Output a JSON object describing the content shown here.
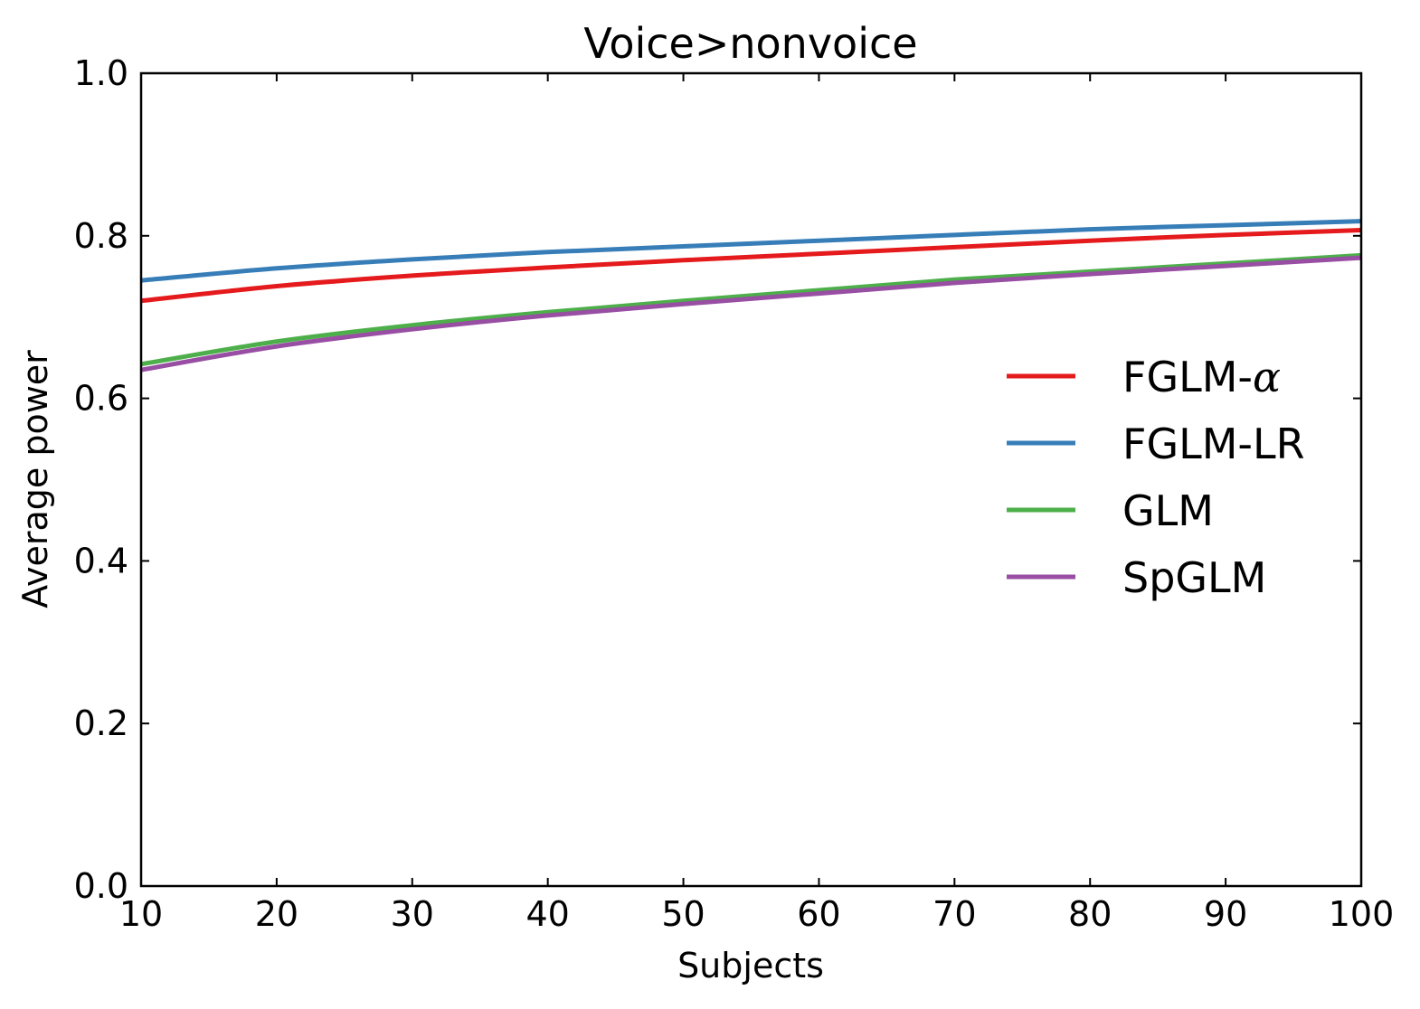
{
  "chart_data": {
    "type": "line",
    "title": "Voice>nonvoice",
    "xlabel": "Subjects",
    "ylabel": "Average power",
    "xlim": [
      10,
      100
    ],
    "ylim": [
      0.0,
      1.0
    ],
    "xticks": [
      10,
      20,
      30,
      40,
      50,
      60,
      70,
      80,
      90,
      100
    ],
    "yticks": [
      0.0,
      0.2,
      0.4,
      0.6,
      0.8,
      1.0
    ],
    "xtick_labels": [
      "10",
      "20",
      "30",
      "40",
      "50",
      "60",
      "70",
      "80",
      "90",
      "100"
    ],
    "ytick_labels": [
      "0.0",
      "0.2",
      "0.4",
      "0.6",
      "0.8",
      "1.0"
    ],
    "grid": false,
    "legend_position": "center-right",
    "x": [
      10,
      20,
      30,
      40,
      50,
      60,
      70,
      80,
      90,
      100
    ],
    "series": [
      {
        "name": "FGLM-",
        "name_suffix": "α",
        "color": "#e41a1c",
        "values": [
          0.72,
          0.738,
          0.751,
          0.761,
          0.77,
          0.778,
          0.786,
          0.794,
          0.801,
          0.807
        ]
      },
      {
        "name": "FGLM-LR",
        "color": "#377eb8",
        "values": [
          0.745,
          0.76,
          0.771,
          0.78,
          0.787,
          0.794,
          0.801,
          0.808,
          0.813,
          0.818
        ]
      },
      {
        "name": "GLM",
        "color": "#4daf4a",
        "values": [
          0.642,
          0.67,
          0.69,
          0.706,
          0.72,
          0.733,
          0.746,
          0.756,
          0.766,
          0.776
        ]
      },
      {
        "name": "SpGLM",
        "color": "#984ea3",
        "values": [
          0.635,
          0.664,
          0.685,
          0.702,
          0.716,
          0.729,
          0.742,
          0.753,
          0.763,
          0.773
        ]
      }
    ]
  }
}
